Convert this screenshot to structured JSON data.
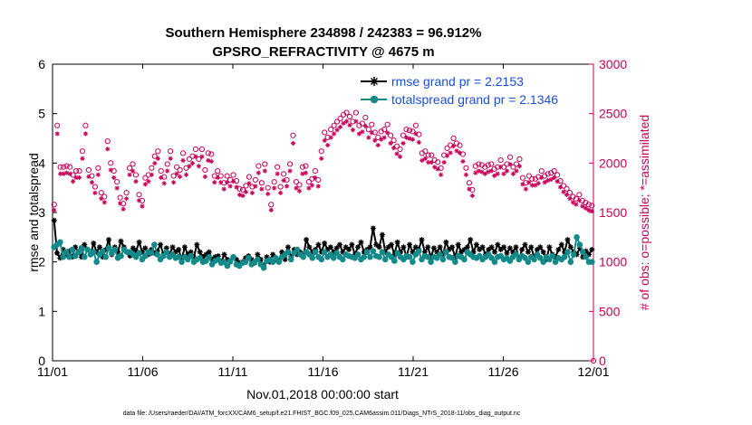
{
  "chart_data": {
    "type": "line",
    "title_line1": "Southern Hemisphere 234898 / 242383 = 96.912%",
    "title_line2": "GPSRO_REFRACTIVITY @ 4675 m",
    "xlabel": "Nov.01,2018 00:00:00 start",
    "ylabel_left": "rmse and totalspread",
    "ylabel_right": "# of obs: o=possible; *=assimilated",
    "x_ticks": [
      "11/01",
      "11/06",
      "11/11",
      "11/16",
      "11/21",
      "11/26",
      "12/01"
    ],
    "x_range_days": [
      0,
      30
    ],
    "y_left_ticks": [
      "0",
      "1",
      "2",
      "3",
      "4",
      "5",
      "6"
    ],
    "ylim_left": [
      0,
      6
    ],
    "y_right_ticks": [
      "0",
      "500",
      "1000",
      "1500",
      "2000",
      "2500",
      "3000"
    ],
    "ylim_right": [
      0,
      3000
    ],
    "footer": "data file: /Users/raeder/DAI/ATM_forcXX/CAM6_setup/f.e21.FHIST_BGC.f09_025.CAM6assim.011/Diags_NTrS_2018-11/obs_diag_output.nc",
    "colors": {
      "rmse": "#000000",
      "spread": "#138a8a",
      "obs": "#c8005a",
      "legend_text": "#1a4fd8"
    },
    "series": [
      {
        "name": "rmse grand pr = 2.2153",
        "marker": "asterisk",
        "values": [
          2.84,
          2.18,
          2.08,
          2.25,
          2.15,
          2.22,
          2.1,
          2.3,
          2.2,
          2.1,
          2.35,
          2.25,
          2.15,
          2.38,
          2.2,
          2.3,
          2.1,
          2.25,
          2.45,
          2.15,
          2.3,
          2.2,
          2.42,
          2.3,
          2.2,
          2.12,
          2.28,
          2.22,
          2.4,
          2.2,
          2.28,
          2.15,
          2.25,
          2.18,
          2.22,
          2.35,
          2.15,
          2.28,
          2.15,
          2.3,
          2.2,
          2.25,
          2.05,
          2.3,
          2.15,
          2.2,
          2.1,
          2.35,
          2.2,
          2.1,
          2.15,
          2.2,
          2.05,
          2.1,
          2.12,
          2.0,
          2.15,
          2.05,
          2.0,
          2.1,
          2.05,
          1.98,
          2.0,
          2.08,
          2.12,
          2.05,
          1.98,
          2.15,
          2.05,
          1.92,
          2.1,
          2.0,
          2.15,
          2.05,
          2.02,
          2.2,
          2.05,
          2.3,
          2.1,
          2.25,
          2.15,
          2.2,
          2.1,
          2.45,
          2.3,
          2.2,
          2.25,
          2.35,
          2.2,
          2.38,
          2.25,
          2.3,
          2.2,
          2.28,
          2.35,
          2.2,
          2.3,
          2.25,
          2.35,
          2.15,
          2.3,
          2.4,
          2.2,
          2.25,
          2.3,
          2.68,
          2.35,
          2.3,
          2.55,
          2.2,
          2.3,
          2.35,
          2.15,
          2.4,
          2.2,
          2.3,
          2.1,
          2.35,
          2.2,
          2.3,
          2.25,
          2.45,
          2.2,
          2.3,
          2.1,
          2.28,
          2.2,
          2.3,
          2.15,
          2.4,
          2.25,
          2.3,
          2.1,
          2.35,
          2.2,
          2.25,
          2.3,
          2.45,
          2.2,
          2.35,
          2.25,
          2.3,
          2.15,
          2.25,
          2.3,
          2.2,
          2.35,
          2.25,
          2.3,
          2.18,
          2.28,
          2.2,
          2.3,
          2.05,
          2.25,
          2.35,
          2.2,
          2.3,
          2.1,
          2.25,
          2.3,
          2.2,
          2.05,
          2.3,
          2.15,
          2.1,
          2.25,
          2.35,
          2.2,
          2.45,
          2.3,
          2.2,
          2.15,
          2.28,
          2.1,
          2.22,
          2.15,
          2.25
        ]
      },
      {
        "name": "totalspread grand pr = 2.1346",
        "marker": "circle",
        "values": [
          2.3,
          2.35,
          2.4,
          2.1,
          2.2,
          2.1,
          2.25,
          2.12,
          2.2,
          2.28,
          2.1,
          2.25,
          2.15,
          2.2,
          2.0,
          2.15,
          2.22,
          2.1,
          2.28,
          2.18,
          2.25,
          2.08,
          2.12,
          2.25,
          2.2,
          2.2,
          2.15,
          2.1,
          2.18,
          2.05,
          2.12,
          2.2,
          2.18,
          2.35,
          2.15,
          2.05,
          2.12,
          2.2,
          2.1,
          2.15,
          2.08,
          2.1,
          2.0,
          2.1,
          2.05,
          2.12,
          2.0,
          2.05,
          2.08,
          2.0,
          2.02,
          2.1,
          1.95,
          2.02,
          2.05,
          1.98,
          2.0,
          1.92,
          2.02,
          2.1,
          1.95,
          1.92,
          1.98,
          2.0,
          2.08,
          1.95,
          2.0,
          2.05,
          1.95,
          1.88,
          2.02,
          2.05,
          2.0,
          2.08,
          2.0,
          2.1,
          2.15,
          2.2,
          2.05,
          2.18,
          2.25,
          2.15,
          2.1,
          2.2,
          2.15,
          2.08,
          2.2,
          2.1,
          2.05,
          2.2,
          2.1,
          2.15,
          2.08,
          2.18,
          2.1,
          2.05,
          2.15,
          2.12,
          2.1,
          2.08,
          2.15,
          2.05,
          2.1,
          2.2,
          2.1,
          2.22,
          2.12,
          2.1,
          2.2,
          2.05,
          2.15,
          2.1,
          2.02,
          2.18,
          2.1,
          2.05,
          2.12,
          2.1,
          2.0,
          2.15,
          2.22,
          2.05,
          2.12,
          2.1,
          2.0,
          2.1,
          2.08,
          2.15,
          2.05,
          2.2,
          2.1,
          2.08,
          2.0,
          2.12,
          2.1,
          2.05,
          2.2,
          2.15,
          2.1,
          2.08,
          2.12,
          2.05,
          2.1,
          2.15,
          2.08,
          2.0,
          2.1,
          2.12,
          2.05,
          2.08,
          2.02,
          2.1,
          2.15,
          2.05,
          2.12,
          2.08,
          2.0,
          2.1,
          2.05,
          2.15,
          2.08,
          2.0,
          2.1,
          2.05,
          2.12,
          2.0,
          2.08,
          2.05,
          2.1,
          2.2,
          2.0,
          2.15,
          2.5,
          2.35,
          2.2,
          2.1,
          2.0,
          2.0
        ]
      }
    ],
    "obs_possible": [
      1580,
      2380,
      1960,
      1960,
      1970,
      1960,
      1880,
      1920,
      1920,
      2120,
      2380,
      1930,
      1870,
      1760,
      1950,
      1700,
      1660,
      2220,
      2000,
      1920,
      1810,
      1650,
      1590,
      1700,
      1950,
      1990,
      1880,
      1680,
      1620,
      1850,
      1880,
      1950,
      2070,
      2120,
      1920,
      1860,
      1990,
      2120,
      1870,
      1960,
      1930,
      2100,
      1950,
      2040,
      2070,
      2140,
      2040,
      2140,
      1930,
      2100,
      2090,
      1870,
      1920,
      1870,
      1800,
      1870,
      1830,
      1880,
      1820,
      1740,
      1730,
      1770,
      1860,
      1760,
      1830,
      1970,
      1800,
      1990,
      1750,
      1580,
      1810,
      1960,
      1760,
      1890,
      1830,
      1990,
      2280,
      1810,
      1780,
      1960,
      1970,
      1810,
      1840,
      1920,
      1830,
      2120,
      2310,
      2260,
      2340,
      2380,
      2420,
      2450,
      2490,
      2510,
      2470,
      2420,
      2510,
      2380,
      2400,
      2460,
      2340,
      2390,
      2310,
      2260,
      2320,
      2340,
      2390,
      2280,
      2230,
      2170,
      2140,
      2280,
      2340,
      2330,
      2320,
      2380,
      2290,
      2100,
      2120,
      2080,
      2080,
      2030,
      2010,
      1950,
      2080,
      2150,
      2180,
      2250,
      2200,
      2180,
      2090,
      1950,
      1800,
      1730,
      1970,
      1990,
      1980,
      1960,
      1980,
      1990,
      1940,
      1960,
      2030,
      1960,
      1990,
      2060,
      1960,
      1990,
      2040,
      1850,
      1800,
      1870,
      1840,
      1840,
      1860,
      1920,
      1870,
      1890,
      1900,
      1920,
      1880,
      1820,
      1770,
      1740,
      1700,
      1660,
      1640,
      1680,
      1620,
      1600,
      1580,
      1570
    ]
  }
}
